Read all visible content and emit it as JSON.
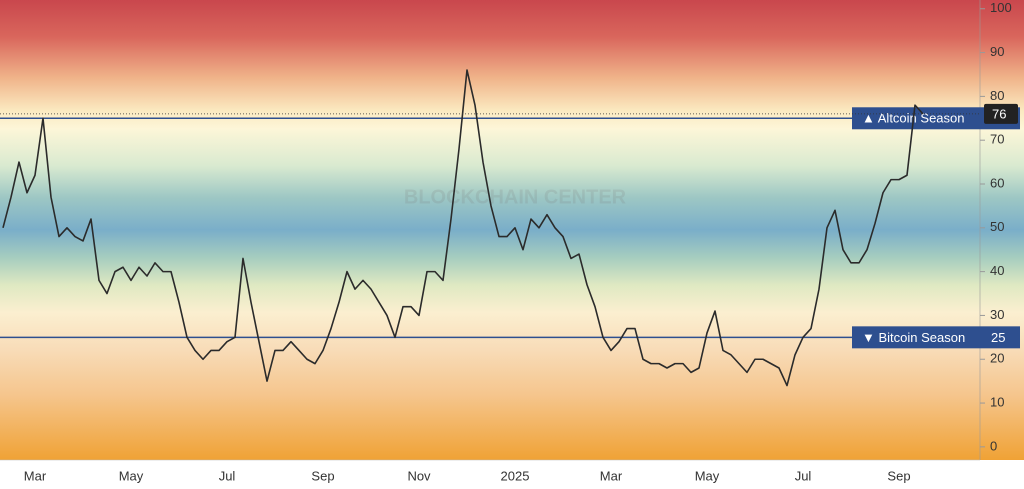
{
  "chart_data": {
    "type": "line",
    "watermark": "BLOCKCHAIN CENTER",
    "categories": [
      null,
      null,
      null,
      null,
      "Mar",
      null,
      null,
      null,
      null,
      null,
      null,
      null,
      null,
      null,
      null,
      null,
      "May",
      null,
      null,
      null,
      null,
      null,
      null,
      null,
      null,
      null,
      null,
      null,
      "Jul",
      null,
      null,
      null,
      null,
      null,
      null,
      null,
      null,
      null,
      null,
      null,
      "Sep",
      null,
      null,
      null,
      null,
      null,
      null,
      null,
      null,
      null,
      null,
      null,
      "Nov",
      null,
      null,
      null,
      null,
      null,
      null,
      null,
      null,
      null,
      null,
      null,
      "2025",
      null,
      null,
      null,
      null,
      null,
      null,
      null,
      null,
      null,
      null,
      null,
      "Mar",
      null,
      null,
      null,
      null,
      null,
      null,
      null,
      null,
      null,
      null,
      null,
      "May",
      null,
      null,
      null,
      null,
      null,
      null,
      null,
      null,
      null,
      null,
      null,
      "Jul",
      null,
      null,
      null,
      null,
      null,
      null,
      null,
      null,
      null,
      null,
      null,
      "Sep",
      null,
      null,
      null
    ],
    "values": [
      50,
      57,
      65,
      58,
      62,
      75,
      57,
      48,
      50,
      48,
      47,
      52,
      38,
      35,
      40,
      41,
      38,
      41,
      39,
      42,
      40,
      40,
      33,
      25,
      22,
      20,
      22,
      22,
      24,
      25,
      43,
      33,
      24,
      15,
      22,
      22,
      24,
      22,
      20,
      19,
      22,
      27,
      33,
      40,
      36,
      38,
      36,
      33,
      30,
      25,
      32,
      32,
      30,
      40,
      40,
      38,
      52,
      68,
      86,
      78,
      65,
      55,
      48,
      48,
      50,
      45,
      52,
      50,
      53,
      50,
      48,
      43,
      44,
      37,
      32,
      25,
      22,
      24,
      27,
      27,
      20,
      19,
      19,
      18,
      19,
      19,
      17,
      18,
      26,
      31,
      22,
      21,
      19,
      17,
      20,
      20,
      19,
      18,
      14,
      21,
      25,
      27,
      36,
      50,
      54,
      45,
      42,
      42,
      45,
      51,
      58,
      61,
      61,
      62,
      78,
      76
    ],
    "color": "#2b2b2b",
    "ylim": [
      -3,
      102
    ],
    "yticks": [
      0,
      10,
      20,
      30,
      40,
      50,
      60,
      70,
      80,
      90,
      100
    ],
    "reference_lines": [
      {
        "value": 75,
        "label": "▲ Altcoin Season",
        "color": "#2e4f8f"
      },
      {
        "value": 25,
        "label": "▼ Bitcoin Season",
        "color": "#2e4f8f"
      }
    ]
  }
}
